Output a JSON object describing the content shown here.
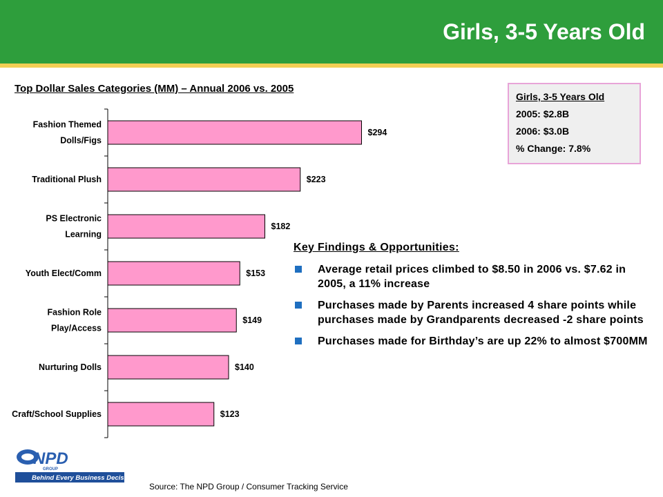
{
  "header": {
    "title": "Girls, 3-5 Years Old"
  },
  "chart_data": {
    "type": "bar",
    "orientation": "horizontal",
    "title": "Top Dollar Sales Categories (MM) – Annual 2006 vs. 2005",
    "categories": [
      [
        "Fashion Themed",
        "Dolls/Figs"
      ],
      [
        "Traditional Plush"
      ],
      [
        "PS Electronic",
        "Learning"
      ],
      [
        "Youth Elect/Comm"
      ],
      [
        "Fashion Role",
        "Play/Access"
      ],
      [
        "Nurturing Dolls"
      ],
      [
        "Craft/School Supplies"
      ]
    ],
    "values": [
      294,
      223,
      182,
      153,
      149,
      140,
      123
    ],
    "value_labels": [
      "$294",
      "$223",
      "$182",
      "$153",
      "$149",
      "$140",
      "$123"
    ],
    "xlim": [
      0,
      300
    ],
    "bar_color": "#ff99cc",
    "grid": false
  },
  "info_box": {
    "title": "Girls, 3-5 Years Old",
    "lines": [
      "2005: $2.8B",
      "2006: $3.0B",
      "% Change: 7.8%"
    ]
  },
  "findings": {
    "title": "Key Findings & Opportunities:",
    "items": [
      "Average retail prices climbed to $8.50 in 2006 vs. $7.62 in 2005, a 11% increase",
      "Purchases made by Parents increased 4 share points while purchases made by Grandparents decreased -2 share points",
      "Purchases made for Birthday’s are up 22% to almost $700MM"
    ]
  },
  "logo": {
    "name": "NPD",
    "subtext": "GROUP",
    "tagline": "Behind Every Business Decision"
  },
  "source": "Source:  The NPD Group / Consumer Tracking Service",
  "colors": {
    "header": "#2e9e3c",
    "stripe": "#f2cf55",
    "bullet": "#1f6fc0",
    "bar": "#ff99cc",
    "box_border": "#e8a4d8"
  }
}
